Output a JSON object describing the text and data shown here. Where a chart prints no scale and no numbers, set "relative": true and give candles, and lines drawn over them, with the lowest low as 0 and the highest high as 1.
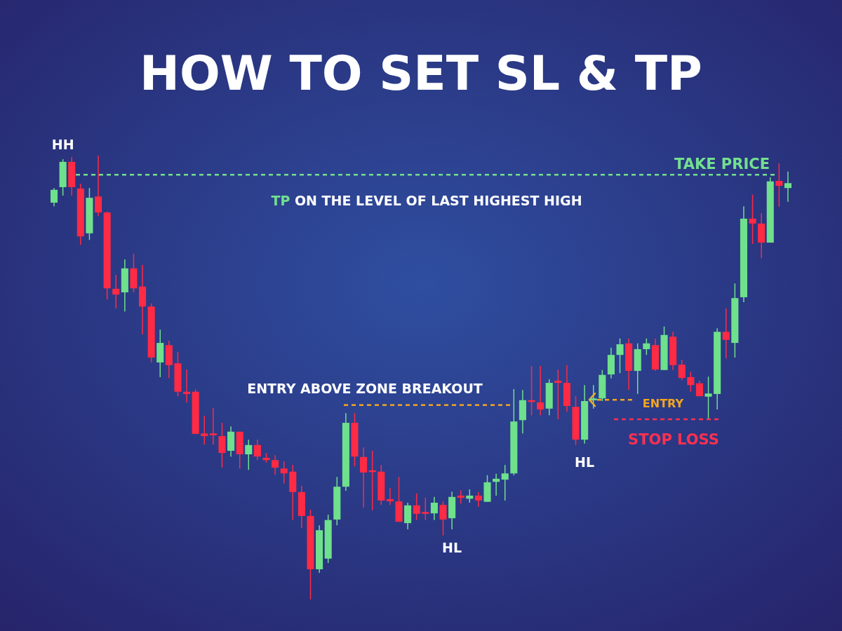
{
  "chart_data": {
    "type": "candlestick",
    "title": "HOW TO SET SL & TP",
    "relative": true,
    "categories": [
      null,
      null,
      null,
      null,
      null,
      null,
      null,
      null,
      null,
      null,
      null,
      null,
      null,
      null,
      null,
      null,
      null,
      null,
      null,
      null,
      null,
      null,
      null,
      null,
      null,
      null,
      null,
      null,
      null,
      null,
      null,
      null,
      null,
      null,
      null,
      null,
      null,
      null,
      null,
      null,
      null,
      null,
      null,
      null,
      null,
      null,
      null,
      null,
      null,
      null,
      null,
      null,
      null,
      null,
      null,
      null,
      null,
      null,
      null,
      null,
      null,
      null,
      null,
      null,
      null,
      null,
      null,
      null,
      null,
      null,
      null,
      null,
      null,
      null,
      null,
      null,
      null,
      null,
      null,
      null,
      null,
      null,
      null,
      null
    ],
    "ohlc": [
      [
        0.894,
        0.927,
        0.886,
        0.923
      ],
      [
        0.929,
        0.992,
        0.91,
        0.986
      ],
      [
        0.986,
        0.997,
        0.91,
        0.929
      ],
      [
        0.926,
        0.937,
        0.799,
        0.818
      ],
      [
        0.825,
        0.927,
        0.81,
        0.905
      ],
      [
        0.908,
        1,
        0.864,
        0.872
      ],
      [
        0.872,
        0.874,
        0.676,
        0.701
      ],
      [
        0.7,
        0.731,
        0.656,
        0.687
      ],
      [
        0.692,
        0.766,
        0.649,
        0.746
      ],
      [
        0.746,
        0.779,
        0.692,
        0.701
      ],
      [
        0.705,
        0.754,
        0.597,
        0.66
      ],
      [
        0.66,
        0.667,
        0.534,
        0.545
      ],
      [
        0.534,
        0.608,
        0.501,
        0.578
      ],
      [
        0.573,
        0.583,
        0.499,
        0.528
      ],
      [
        0.532,
        0.558,
        0.458,
        0.468
      ],
      [
        0.468,
        0.518,
        0.444,
        0.463
      ],
      [
        0.468,
        0.474,
        0.373,
        0.373
      ],
      [
        0.374,
        0.414,
        0.349,
        0.368
      ],
      [
        0.374,
        0.431,
        0.349,
        0.373
      ],
      [
        0.368,
        0.398,
        0.297,
        0.33
      ],
      [
        0.335,
        0.39,
        0.322,
        0.378
      ],
      [
        0.378,
        0.378,
        0.295,
        0.327
      ],
      [
        0.327,
        0.36,
        0.292,
        0.348
      ],
      [
        0.348,
        0.36,
        0.314,
        0.322
      ],
      [
        0.319,
        0.33,
        0.308,
        0.314
      ],
      [
        0.314,
        0.325,
        0.281,
        0.297
      ],
      [
        0.295,
        0.311,
        0.261,
        0.284
      ],
      [
        0.288,
        0.303,
        0.179,
        0.242
      ],
      [
        0.242,
        0.256,
        0.161,
        0.188
      ],
      [
        0.188,
        0.202,
        0,
        0.068
      ],
      [
        0.068,
        0.167,
        0.06,
        0.156
      ],
      [
        0.092,
        0.191,
        0.082,
        0.179
      ],
      [
        0.18,
        0.276,
        0.167,
        0.254
      ],
      [
        0.254,
        0.42,
        0.245,
        0.398
      ],
      [
        0.398,
        0.42,
        0.3,
        0.322
      ],
      [
        0.321,
        0.343,
        0.207,
        0.286
      ],
      [
        0.291,
        0.335,
        0.201,
        0.288
      ],
      [
        0.288,
        0.303,
        0.213,
        0.223
      ],
      [
        0.226,
        0.251,
        0.213,
        0.221
      ],
      [
        0.221,
        0.276,
        0.175,
        0.175
      ],
      [
        0.172,
        0.218,
        0.158,
        0.212
      ],
      [
        0.212,
        0.239,
        0.179,
        0.193
      ],
      [
        0.197,
        0.229,
        0.179,
        0.193
      ],
      [
        0.194,
        0.231,
        0.179,
        0.218
      ],
      [
        0.213,
        0.221,
        0.144,
        0.18
      ],
      [
        0.183,
        0.243,
        0.158,
        0.231
      ],
      [
        0.234,
        0.246,
        0.216,
        0.229
      ],
      [
        0.227,
        0.248,
        0.218,
        0.234
      ],
      [
        0.234,
        0.242,
        0.209,
        0.223
      ],
      [
        0.22,
        0.28,
        0.22,
        0.264
      ],
      [
        0.265,
        0.283,
        0.234,
        0.272
      ],
      [
        0.27,
        0.303,
        0.223,
        0.284
      ],
      [
        0.284,
        0.474,
        0.28,
        0.401
      ],
      [
        0.404,
        0.472,
        0.374,
        0.449
      ],
      [
        0.449,
        0.526,
        0.415,
        0.445
      ],
      [
        0.444,
        0.526,
        0.415,
        0.428
      ],
      [
        0.43,
        0.496,
        0.415,
        0.488
      ],
      [
        0.493,
        0.518,
        0.406,
        0.488
      ],
      [
        0.488,
        0.528,
        0.423,
        0.436
      ],
      [
        0.434,
        0.458,
        0.348,
        0.36
      ],
      [
        0.36,
        0.483,
        0.351,
        0.447
      ],
      [
        0.449,
        0.483,
        0.43,
        0.453
      ],
      [
        0.453,
        0.517,
        0.447,
        0.506
      ],
      [
        0.507,
        0.567,
        0.498,
        0.551
      ],
      [
        0.551,
        0.588,
        0.51,
        0.575
      ],
      [
        0.577,
        0.588,
        0.472,
        0.515
      ],
      [
        0.515,
        0.577,
        0.463,
        0.564
      ],
      [
        0.564,
        0.588,
        0.551,
        0.577
      ],
      [
        0.573,
        0.588,
        0.515,
        0.518
      ],
      [
        0.517,
        0.615,
        0.517,
        0.596
      ],
      [
        0.592,
        0.603,
        0.517,
        0.528
      ],
      [
        0.529,
        0.54,
        0.494,
        0.499
      ],
      [
        0.501,
        0.513,
        0.468,
        0.483
      ],
      [
        0.487,
        0.493,
        0.457,
        0.458
      ],
      [
        0.457,
        0.502,
        0.408,
        0.464
      ],
      [
        0.463,
        0.611,
        0.428,
        0.603
      ],
      [
        0.603,
        0.656,
        0.543,
        0.585
      ],
      [
        0.578,
        0.712,
        0.545,
        0.679
      ],
      [
        0.681,
        0.886,
        0.67,
        0.858
      ],
      [
        0.858,
        0.912,
        0.801,
        0.847
      ],
      [
        0.847,
        0.87,
        0.769,
        0.804
      ],
      [
        0.804,
        0.951,
        0.804,
        0.942
      ],
      [
        0.943,
        0.983,
        0.885,
        0.932
      ],
      [
        0.927,
        0.964,
        0.896,
        0.938
      ]
    ],
    "colors": [
      "#6fe08c",
      "#6fe08c",
      "#ff2a44",
      "#ff2a44",
      "#6fe08c",
      "#ff2a44",
      "#ff2a44",
      "#ff2a44",
      "#6fe08c",
      "#ff2a44",
      "#ff2a44",
      "#ff2a44",
      "#6fe08c",
      "#ff2a44",
      "#ff2a44",
      "#ff2a44",
      "#ff2a44",
      "#ff2a44",
      "#ff2a44",
      "#ff2a44",
      "#6fe08c",
      "#ff2a44",
      "#6fe08c",
      "#ff2a44",
      "#ff2a44",
      "#ff2a44",
      "#ff2a44",
      "#ff2a44",
      "#ff2a44",
      "#ff2a44",
      "#6fe08c",
      "#6fe08c",
      "#6fe08c",
      "#6fe08c",
      "#ff2a44",
      "#ff2a44",
      "#ff2a44",
      "#ff2a44",
      "#ff2a44",
      "#ff2a44",
      "#6fe08c",
      "#ff2a44",
      "#ff2a44",
      "#6fe08c",
      "#ff2a44",
      "#6fe08c",
      "#ff2a44",
      "#6fe08c",
      "#ff2a44",
      "#6fe08c",
      "#6fe08c",
      "#6fe08c",
      "#6fe08c",
      "#6fe08c",
      "#ff2a44",
      "#ff2a44",
      "#6fe08c",
      "#ff2a44",
      "#ff2a44",
      "#ff2a44",
      "#6fe08c",
      "#6fe08c",
      "#6fe08c",
      "#6fe08c",
      "#6fe08c",
      "#ff2a44",
      "#6fe08c",
      "#6fe08c",
      "#ff2a44",
      "#6fe08c",
      "#ff2a44",
      "#ff2a44",
      "#ff2a44",
      "#ff2a44",
      "#6fe08c",
      "#6fe08c",
      "#ff2a44",
      "#6fe08c",
      "#6fe08c",
      "#ff2a44",
      "#ff2a44",
      "#6fe08c",
      "#ff2a44",
      "#6fe08c"
    ],
    "ref_lines": [
      {
        "axis": "y",
        "value": 0.957,
        "label": "TAKE PRICE",
        "color": "#72e08e",
        "line_style": "dashed"
      },
      {
        "axis": "y",
        "value": 0.438,
        "label": "ENTRY ABOVE ZONE BREAKOUT",
        "color": "#f2a520",
        "line_style": "dashed"
      },
      {
        "axis": "y",
        "value": 0.45,
        "label": "ENTRY",
        "color": "#f2a520",
        "line_style": "dashed"
      },
      {
        "axis": "y",
        "value": 0.406,
        "label": "STOP LOSS",
        "color": "#ff3050",
        "line_style": "dashed"
      }
    ],
    "annotations": [
      "TP ON THE LEVEL OF LAST HIGHEST HIGH",
      "HH",
      "HL",
      "HL"
    ]
  }
}
